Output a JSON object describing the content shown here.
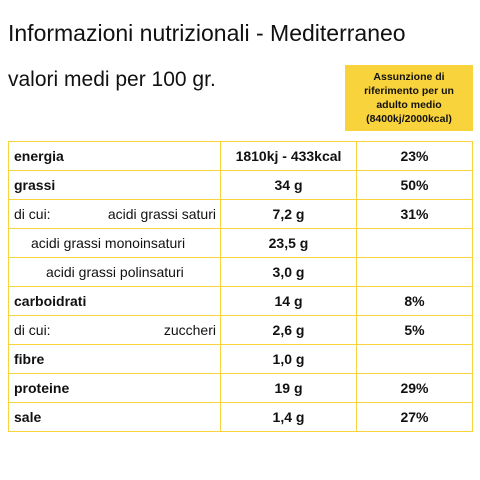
{
  "header": {
    "title": "Informazioni nutrizionali - Mediterraneo",
    "subtitle": "valori medi per 100 gr."
  },
  "reference_box": {
    "lines": [
      "Assunzione di",
      "riferimento per un",
      "adulto medio",
      "(8400kj/2000kcal)"
    ]
  },
  "table": {
    "rows": [
      {
        "label": "energia",
        "value": "1810kj - 433kcal",
        "percent": "23%"
      },
      {
        "label": "grassi",
        "value": "34 g",
        "percent": "50%"
      },
      {
        "prefix": "di cui:",
        "label": "acidi grassi saturi",
        "value": "7,2 g",
        "percent": "31%"
      },
      {
        "label": "acidi grassi monoinsaturi",
        "value": "23,5 g"
      },
      {
        "label": "acidi grassi polinsaturi",
        "value": "3,0 g"
      },
      {
        "label": "carboidrati",
        "value": "14 g",
        "percent": "8%"
      },
      {
        "prefix": "di cui:",
        "label": "zuccheri",
        "value": "2,6 g",
        "percent": "5%"
      },
      {
        "label": "fibre",
        "value": "1,0 g"
      },
      {
        "label": "proteine",
        "value": "19 g",
        "percent": "29%"
      },
      {
        "label": "sale",
        "value": "1,4 g",
        "percent": "27%"
      }
    ]
  }
}
